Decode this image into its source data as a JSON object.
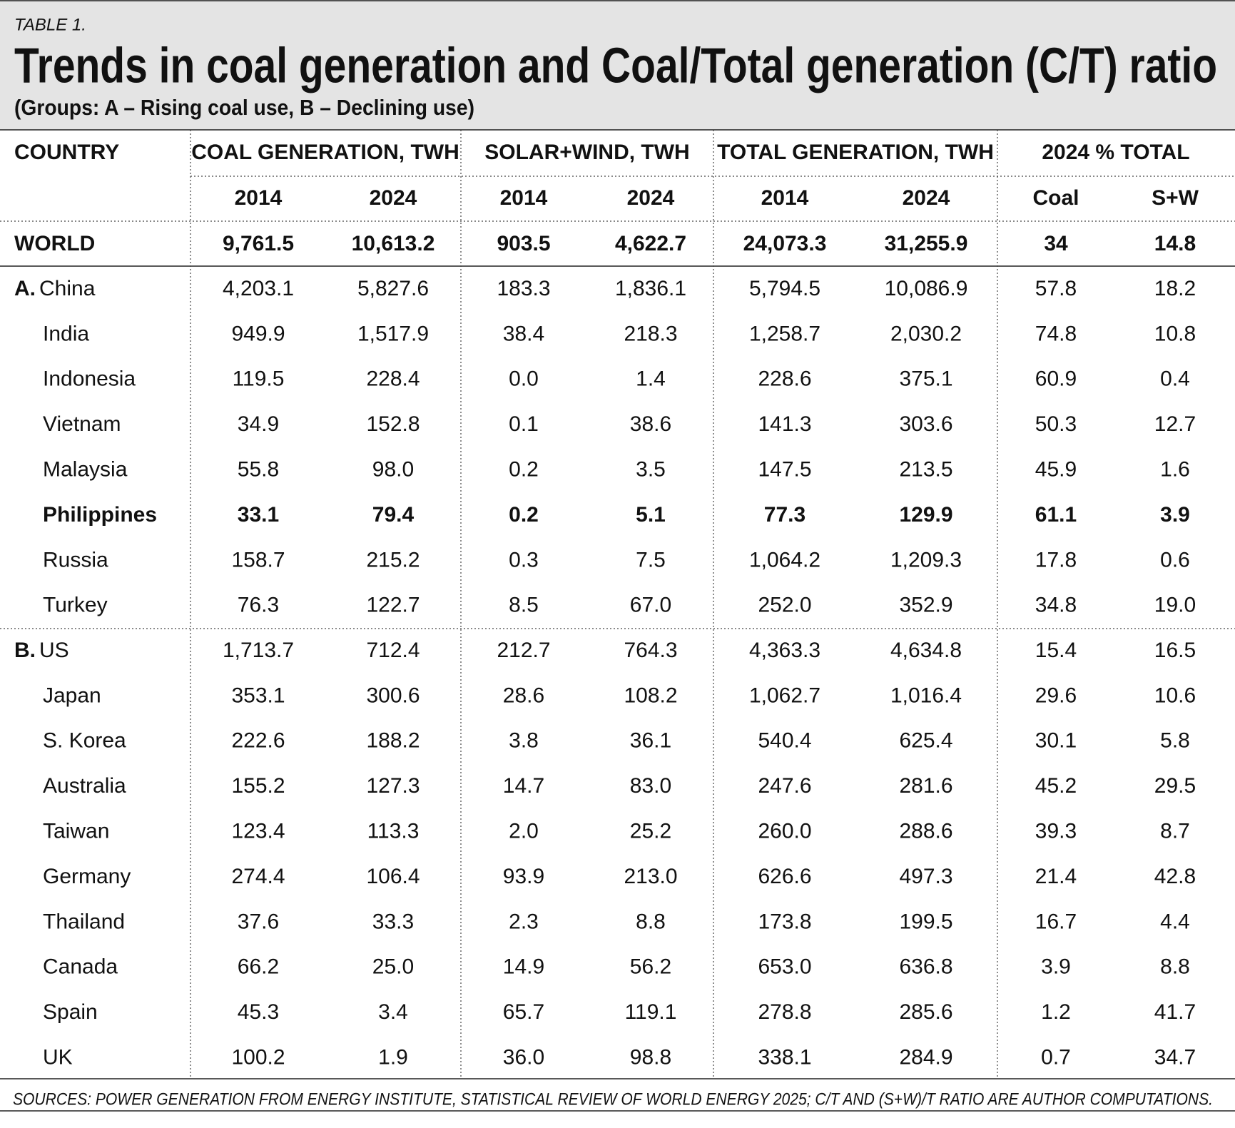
{
  "header": {
    "label": "TABLE 1.",
    "title": "Trends in coal generation and Coal/Total generation (C/T) ratio",
    "subtitle": "(Groups: A – Rising coal use, B – Declining use)"
  },
  "table": {
    "group_headers": [
      "COUNTRY",
      "COAL GENERATION, TWH",
      "SOLAR+WIND, TWH",
      "TOTAL GENERATION, TWH",
      "2024 % TOTAL"
    ],
    "sub_headers": [
      "2014",
      "2024",
      "2014",
      "2024",
      "2014",
      "2024",
      "Coal",
      "S+W"
    ],
    "world": [
      "WORLD",
      "9,761.5",
      "10,613.2",
      "903.5",
      "4,622.7",
      "24,073.3",
      "31,255.9",
      "34",
      "14.8"
    ],
    "groups": [
      {
        "label": "A.",
        "bold_rows": [
          5
        ],
        "rows": [
          [
            "China",
            "4,203.1",
            "5,827.6",
            "183.3",
            "1,836.1",
            "5,794.5",
            "10,086.9",
            "57.8",
            "18.2"
          ],
          [
            "India",
            "949.9",
            "1,517.9",
            "38.4",
            "218.3",
            "1,258.7",
            "2,030.2",
            "74.8",
            "10.8"
          ],
          [
            "Indonesia",
            "119.5",
            "228.4",
            "0.0",
            "1.4",
            "228.6",
            "375.1",
            "60.9",
            "0.4"
          ],
          [
            "Vietnam",
            "34.9",
            "152.8",
            "0.1",
            "38.6",
            "141.3",
            "303.6",
            "50.3",
            "12.7"
          ],
          [
            "Malaysia",
            "55.8",
            "98.0",
            "0.2",
            "3.5",
            "147.5",
            "213.5",
            "45.9",
            "1.6"
          ],
          [
            "Philippines",
            "33.1",
            "79.4",
            "0.2",
            "5.1",
            "77.3",
            "129.9",
            "61.1",
            "3.9"
          ],
          [
            "Russia",
            "158.7",
            "215.2",
            "0.3",
            "7.5",
            "1,064.2",
            "1,209.3",
            "17.8",
            "0.6"
          ],
          [
            "Turkey",
            "76.3",
            "122.7",
            "8.5",
            "67.0",
            "252.0",
            "352.9",
            "34.8",
            "19.0"
          ]
        ]
      },
      {
        "label": "B.",
        "bold_rows": [],
        "rows": [
          [
            "US",
            "1,713.7",
            "712.4",
            "212.7",
            "764.3",
            "4,363.3",
            "4,634.8",
            "15.4",
            "16.5"
          ],
          [
            "Japan",
            "353.1",
            "300.6",
            "28.6",
            "108.2",
            "1,062.7",
            "1,016.4",
            "29.6",
            "10.6"
          ],
          [
            "S. Korea",
            "222.6",
            "188.2",
            "3.8",
            "36.1",
            "540.4",
            "625.4",
            "30.1",
            "5.8"
          ],
          [
            "Australia",
            "155.2",
            "127.3",
            "14.7",
            "83.0",
            "247.6",
            "281.6",
            "45.2",
            "29.5"
          ],
          [
            "Taiwan",
            "123.4",
            "113.3",
            "2.0",
            "25.2",
            "260.0",
            "288.6",
            "39.3",
            "8.7"
          ],
          [
            "Germany",
            "274.4",
            "106.4",
            "93.9",
            "213.0",
            "626.6",
            "497.3",
            "21.4",
            "42.8"
          ],
          [
            "Thailand",
            "37.6",
            "33.3",
            "2.3",
            "8.8",
            "173.8",
            "199.5",
            "16.7",
            "4.4"
          ],
          [
            "Canada",
            "66.2",
            "25.0",
            "14.9",
            "56.2",
            "653.0",
            "636.8",
            "3.9",
            "8.8"
          ],
          [
            "Spain",
            "45.3",
            "3.4",
            "65.7",
            "119.1",
            "278.8",
            "285.6",
            "1.2",
            "41.7"
          ],
          [
            "UK",
            "100.2",
            "1.9",
            "36.0",
            "98.8",
            "338.1",
            "284.9",
            "0.7",
            "34.7"
          ]
        ]
      }
    ]
  },
  "footer": {
    "source": "SOURCES: POWER GENERATION FROM ENERGY INSTITUTE, STATISTICAL REVIEW OF WORLD ENERGY 2025; C/T AND (S+W)/T RATIO ARE AUTHOR COMPUTATIONS."
  }
}
